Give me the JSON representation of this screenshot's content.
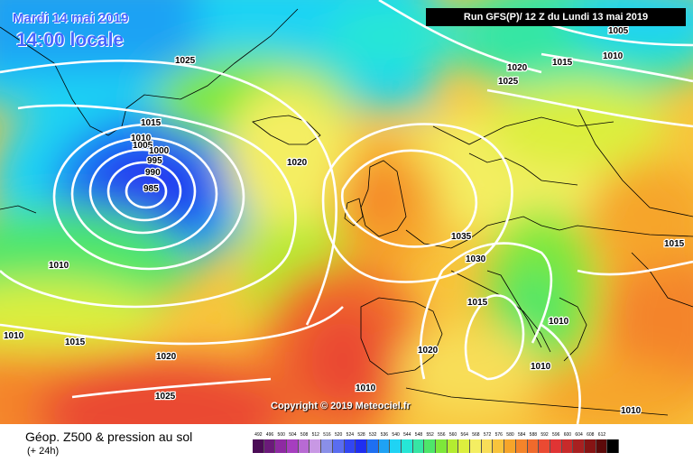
{
  "header": {
    "date": "Mardi 14 mai 2019",
    "time": "14:00 locale",
    "run": "Run GFS(P)/ 12 Z du Lundi 13 mai 2019"
  },
  "copyright": "Copyright © 2019 Meteociel.fr",
  "footer": {
    "title": "Géop. Z500 & pression au sol",
    "subtitle": "(+ 24h)"
  },
  "legend": [
    {
      "value": "492",
      "color": "#4b0b56"
    },
    {
      "value": "496",
      "color": "#6b1a7a"
    },
    {
      "value": "500",
      "color": "#8e2aa2"
    },
    {
      "value": "504",
      "color": "#a63ebf"
    },
    {
      "value": "508",
      "color": "#b86ad3"
    },
    {
      "value": "512",
      "color": "#c898e4"
    },
    {
      "value": "516",
      "color": "#8a8fe8"
    },
    {
      "value": "520",
      "color": "#5a6df0"
    },
    {
      "value": "524",
      "color": "#3246f2"
    },
    {
      "value": "528",
      "color": "#1f2ef0"
    },
    {
      "value": "532",
      "color": "#1e6ff2"
    },
    {
      "value": "536",
      "color": "#1fa2f4"
    },
    {
      "value": "540",
      "color": "#1fd3f4"
    },
    {
      "value": "544",
      "color": "#26e6d6"
    },
    {
      "value": "548",
      "color": "#36e6a4"
    },
    {
      "value": "552",
      "color": "#4ee66a"
    },
    {
      "value": "556",
      "color": "#7ee83a"
    },
    {
      "value": "560",
      "color": "#b4ec30"
    },
    {
      "value": "564",
      "color": "#dcef3e"
    },
    {
      "value": "568",
      "color": "#f4ee62"
    },
    {
      "value": "572",
      "color": "#f8de58"
    },
    {
      "value": "576",
      "color": "#f8c43c"
    },
    {
      "value": "580",
      "color": "#f6a52a"
    },
    {
      "value": "584",
      "color": "#f4842a"
    },
    {
      "value": "588",
      "color": "#f06a2c"
    },
    {
      "value": "592",
      "color": "#ea4a32"
    },
    {
      "value": "596",
      "color": "#e03434"
    },
    {
      "value": "600",
      "color": "#c82a2a"
    },
    {
      "value": "604",
      "color": "#a82020"
    },
    {
      "value": "608",
      "color": "#861414"
    },
    {
      "value": "612",
      "color": "#5c0a0a"
    },
    {
      "value": "",
      "color": "#000000"
    }
  ],
  "isobar_labels": [
    "1005",
    "1025",
    "1020",
    "1015",
    "1025",
    "1010",
    "1015",
    "1010",
    "1005",
    "1000",
    "995",
    "990",
    "985",
    "1020",
    "1035",
    "1030",
    "1015",
    "1015",
    "1010",
    "1010",
    "1020",
    "1020",
    "1010",
    "1015",
    "1010",
    "1025",
    "1010",
    "1010"
  ]
}
